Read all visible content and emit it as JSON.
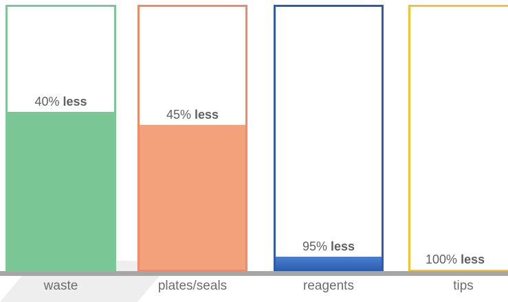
{
  "chart_data": {
    "type": "bar",
    "categories": [
      "waste",
      "plates/seals",
      "reagents",
      "tips"
    ],
    "values": [
      60,
      55,
      5,
      0
    ],
    "ylim": [
      0,
      100
    ],
    "bar_labels": [
      {
        "pct": "40%",
        "word": "less"
      },
      {
        "pct": "45%",
        "word": "less"
      },
      {
        "pct": "95%",
        "word": "less"
      },
      {
        "pct": "100%",
        "word": "less"
      }
    ],
    "colors": {
      "border": [
        "#7cc697",
        "#ee8a68",
        "#2a5fa8",
        "#f2c230"
      ],
      "fill": [
        "#7bc695",
        "#f3a17b",
        "#3f72c4",
        "#f2c230"
      ]
    }
  }
}
